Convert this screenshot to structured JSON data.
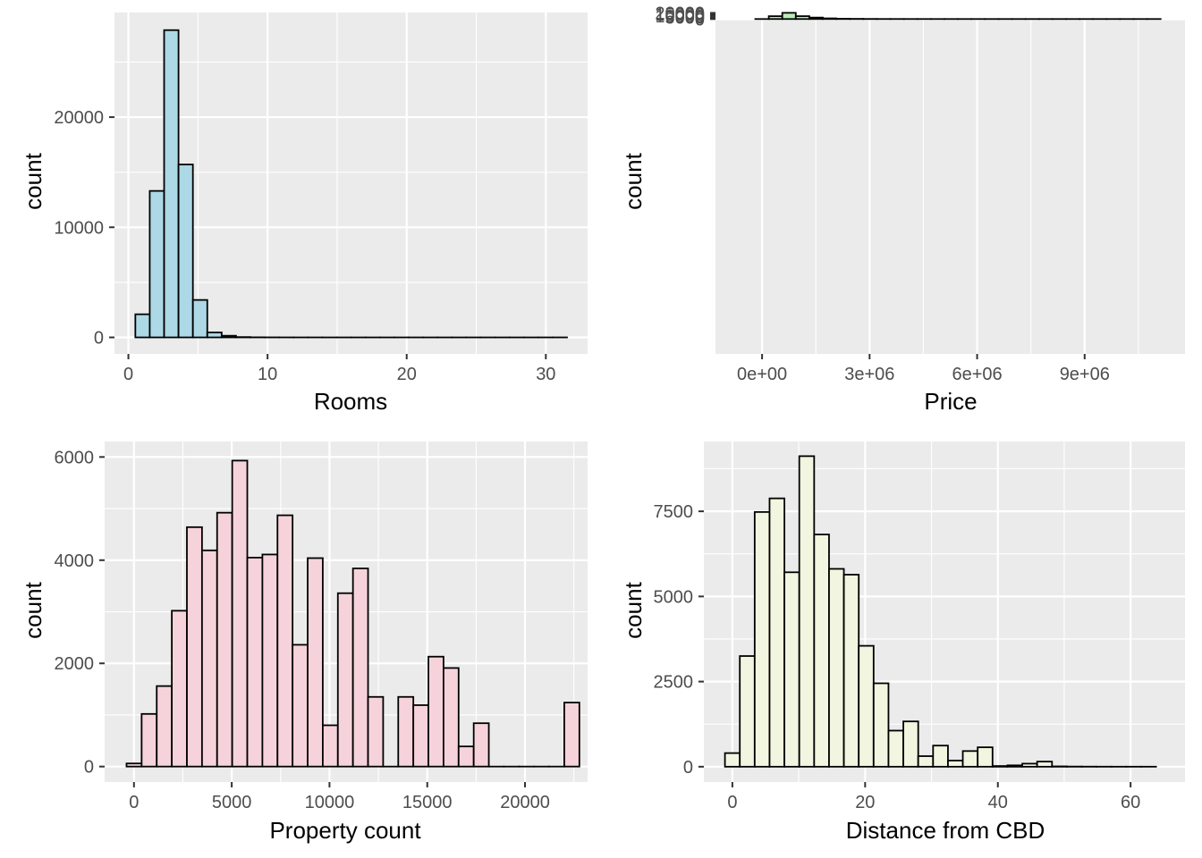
{
  "chart_data": [
    {
      "type": "bar",
      "subtype": "histogram",
      "xlabel": "Rooms",
      "ylabel": "count",
      "fill": "#add8e6",
      "xlim": [
        -1,
        33
      ],
      "ylim": [
        -1500,
        29500
      ],
      "x_ticks": [
        0,
        10,
        20,
        30
      ],
      "x_tick_labels": [
        "0",
        "10",
        "20",
        "30"
      ],
      "y_ticks": [
        0,
        10000,
        20000
      ],
      "y_tick_labels": [
        "0",
        "10000",
        "20000"
      ],
      "grid": true,
      "bins": {
        "start": 0.5,
        "width": 1.034,
        "counts": [
          2100,
          13300,
          27900,
          15700,
          3400,
          450,
          150,
          30,
          10,
          5,
          2,
          1,
          1,
          0,
          0,
          0,
          0,
          0,
          0,
          0,
          0,
          0,
          0,
          0,
          0,
          0,
          0,
          0,
          0,
          1
        ]
      }
    },
    {
      "type": "bar",
      "subtype": "histogram",
      "xlabel": "Price",
      "ylabel": "count",
      "fill": "#b9ecb7",
      "xlim": [
        -1300000,
        11800000
      ],
      "ylim": [
        -1100000,
        21400
      ],
      "x_ticks": [
        0,
        3000000,
        6000000,
        9000000
      ],
      "x_tick_labels": [
        "0e+00",
        "3e+06",
        "6e+06",
        "9e+06"
      ],
      "y_ticks": [
        0,
        5000,
        10000,
        15000,
        20000
      ],
      "y_tick_labels": [
        "0",
        "5000",
        "10000",
        "15000",
        "20000"
      ],
      "grid": true,
      "bins": {
        "start": -190000,
        "width": 377000,
        "counts": [
          0,
          9300,
          20300,
          9400,
          4800,
          2200,
          1050,
          600,
          300,
          150,
          100,
          60,
          40,
          20,
          10,
          8,
          5,
          3,
          2,
          2,
          1,
          1,
          1,
          0,
          0,
          0,
          0,
          0,
          0,
          1
        ]
      }
    },
    {
      "type": "bar",
      "subtype": "histogram",
      "xlabel": "Property count",
      "ylabel": "count",
      "fill": "#f6d3db",
      "xlim": [
        -1500,
        23200
      ],
      "ylim": [
        -300,
        6300
      ],
      "x_ticks": [
        0,
        5000,
        10000,
        15000,
        20000
      ],
      "x_tick_labels": [
        "0",
        "5000",
        "10000",
        "15000",
        "20000"
      ],
      "y_ticks": [
        0,
        2000,
        4000,
        6000
      ],
      "y_tick_labels": [
        "0",
        "2000",
        "4000",
        "6000"
      ],
      "grid": true,
      "bins": {
        "start": -380,
        "width": 772,
        "counts": [
          60,
          1020,
          1560,
          3020,
          4640,
          4190,
          4920,
          5930,
          4050,
          4110,
          4870,
          2360,
          4040,
          800,
          3360,
          3840,
          1350,
          0,
          1350,
          1190,
          2130,
          1910,
          390,
          840,
          0,
          0,
          0,
          0,
          0,
          1240
        ]
      }
    },
    {
      "type": "bar",
      "subtype": "histogram",
      "xlabel": "Distance from CBD",
      "ylabel": "count",
      "fill": "#f2f5df",
      "xlim": [
        -4.3,
        68.2
      ],
      "ylim": [
        -450,
        9550
      ],
      "x_ticks": [
        0,
        20,
        40,
        60
      ],
      "x_tick_labels": [
        "0",
        "20",
        "40",
        "60"
      ],
      "y_ticks": [
        0,
        2500,
        5000,
        7500
      ],
      "y_tick_labels": [
        "0",
        "2500",
        "5000",
        "7500"
      ],
      "grid": true,
      "bins": {
        "start": -1.12,
        "width": 2.24,
        "counts": [
          400,
          3250,
          7480,
          7880,
          5710,
          9120,
          6820,
          5810,
          5640,
          3550,
          2450,
          1060,
          1330,
          310,
          620,
          180,
          460,
          570,
          20,
          40,
          90,
          150,
          10,
          5,
          3,
          2,
          1,
          1,
          1
        ]
      }
    }
  ]
}
